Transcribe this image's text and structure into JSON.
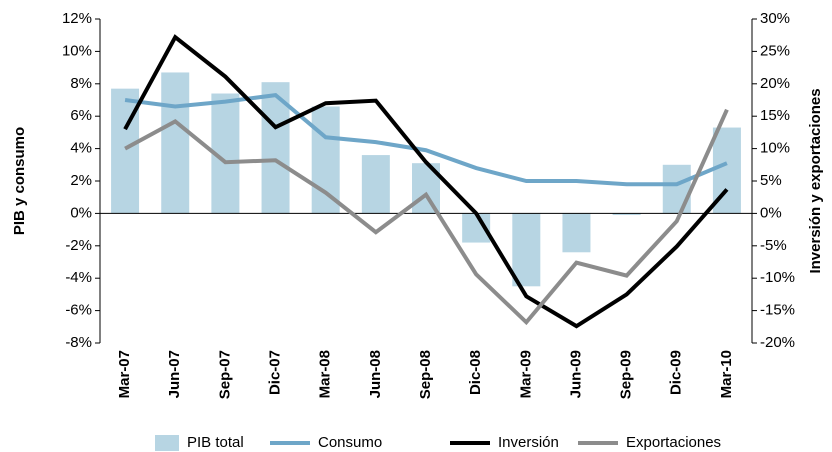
{
  "chart_data": {
    "type": "combo",
    "y_label": "PIB y consumo",
    "y2_label": "Inversión y exportaciones",
    "categories": [
      "Mar-07",
      "Jun-07",
      "Sep-07",
      "Dic-07",
      "Mar-08",
      "Jun-08",
      "Sep-08",
      "Dic-08",
      "Mar-09",
      "Jun-09",
      "Sep-09",
      "Dic-09",
      "Mar-10"
    ],
    "ylim": [
      -8,
      12
    ],
    "yticks": [
      {
        "value": -8,
        "label": "-8%"
      },
      {
        "value": -6,
        "label": "-6%"
      },
      {
        "value": -4,
        "label": "-4%"
      },
      {
        "value": -2,
        "label": "-2%"
      },
      {
        "value": 0,
        "label": "0%"
      },
      {
        "value": 2,
        "label": "2%"
      },
      {
        "value": 4,
        "label": "4%"
      },
      {
        "value": 6,
        "label": "6%"
      },
      {
        "value": 8,
        "label": "8%"
      },
      {
        "value": 10,
        "label": "10%"
      },
      {
        "value": 12,
        "label": "12%"
      }
    ],
    "y2lim": [
      -20,
      30
    ],
    "y2ticks": [
      {
        "value": -20,
        "label": "-20%"
      },
      {
        "value": -15,
        "label": "-15%"
      },
      {
        "value": -10,
        "label": "-10%"
      },
      {
        "value": -5,
        "label": "-5%"
      },
      {
        "value": 0,
        "label": "0%"
      },
      {
        "value": 5,
        "label": "5%"
      },
      {
        "value": 10,
        "label": "10%"
      },
      {
        "value": 15,
        "label": "15%"
      },
      {
        "value": 20,
        "label": "20%"
      },
      {
        "value": 25,
        "label": "25%"
      },
      {
        "value": 30,
        "label": "30%"
      }
    ],
    "series": [
      {
        "name": "PIB total",
        "type": "bar",
        "axis": "y",
        "color": "#b7d5e3",
        "values": [
          7.7,
          8.7,
          7.4,
          8.1,
          6.6,
          3.6,
          3.1,
          -1.8,
          -4.5,
          -2.4,
          -0.1,
          3.0,
          5.3
        ]
      },
      {
        "name": "Consumo",
        "type": "line",
        "axis": "y",
        "color": "#6ea6c8",
        "values": [
          7.0,
          6.6,
          6.9,
          7.3,
          4.7,
          4.4,
          3.9,
          2.8,
          2.0,
          2.0,
          1.8,
          1.8,
          3.1
        ]
      },
      {
        "name": "Inversión",
        "type": "line",
        "axis": "y2",
        "color": "#000000",
        "values": [
          13.0,
          27.2,
          21.1,
          13.3,
          17.0,
          17.4,
          7.9,
          0,
          -12.8,
          -17.4,
          -12.5,
          -5.1,
          3.7
        ]
      },
      {
        "name": "Exportaciones",
        "type": "line",
        "axis": "y2",
        "color": "#8c8c8c",
        "values": [
          10.0,
          14.2,
          7.9,
          8.2,
          3.2,
          -2.9,
          2.9,
          -9.4,
          -16.8,
          -7.6,
          -9.6,
          -1.2,
          16.0
        ]
      }
    ]
  }
}
